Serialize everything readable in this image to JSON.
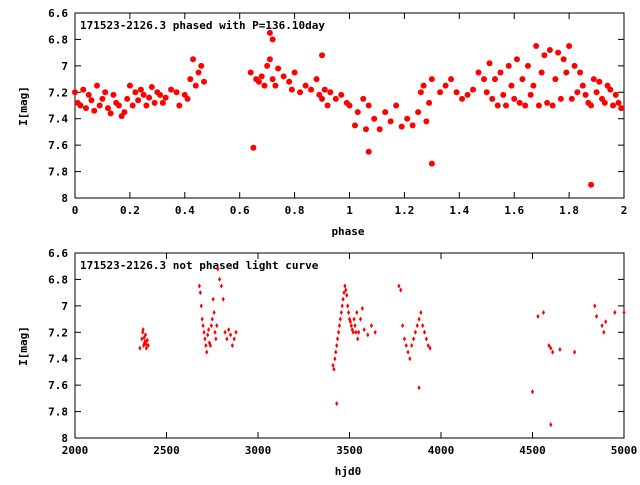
{
  "chart_data": [
    {
      "type": "scatter",
      "title": "171523-2126.3 phased with P=136.10day",
      "xlabel": "phase",
      "ylabel": "I[mag]",
      "xlim": [
        0,
        2
      ],
      "ylim": [
        8,
        6.6
      ],
      "y_inverted": true,
      "xticks": [
        "0",
        "0.2",
        "0.4",
        "0.6",
        "0.8",
        "1",
        "1.2",
        "1.4",
        "1.6",
        "1.8",
        "2"
      ],
      "yticks": [
        "6.6",
        "6.8",
        "7",
        "7.2",
        "7.4",
        "7.6",
        "7.8",
        "8"
      ],
      "marker_color": "#ff0000",
      "grid": false,
      "series": [
        {
          "x": [
            0.0,
            0.01,
            0.02,
            0.03,
            0.04,
            0.05,
            0.06,
            0.07,
            0.08,
            0.09,
            0.1,
            0.11,
            0.12,
            0.13,
            0.14,
            0.15,
            0.16,
            0.17,
            0.18,
            0.19,
            0.2,
            0.21,
            0.22,
            0.23,
            0.24,
            0.25,
            0.26,
            0.27,
            0.28,
            0.29,
            0.3,
            0.31,
            0.32,
            0.33,
            0.35,
            0.37,
            0.38,
            0.4,
            0.41,
            0.42,
            0.43,
            0.44,
            0.45,
            0.46,
            0.47,
            0.64,
            0.66,
            0.67,
            0.68,
            0.69,
            0.7,
            0.71,
            0.72,
            0.73,
            0.74,
            0.76,
            0.78,
            0.79,
            0.8,
            0.82,
            0.84,
            0.86,
            0.88,
            0.89,
            0.9,
            0.91,
            0.92,
            0.93,
            0.95,
            0.97,
            0.99,
            1.0,
            1.02,
            1.03,
            1.05,
            1.06,
            1.07,
            1.09,
            1.11,
            1.13,
            1.15,
            1.17,
            1.19,
            1.21,
            1.23,
            1.25,
            1.26,
            1.27,
            1.28,
            1.29,
            1.3,
            1.33,
            1.35,
            1.37,
            1.39,
            1.41,
            1.43,
            1.45,
            1.47,
            1.49,
            1.5,
            1.51,
            1.52,
            1.53,
            1.54,
            1.55,
            1.56,
            1.57,
            1.58,
            1.59,
            1.6,
            1.61,
            1.62,
            1.63,
            1.64,
            1.65,
            1.66,
            1.67,
            1.68,
            1.69,
            1.7,
            1.71,
            1.72,
            1.73,
            1.74,
            1.75,
            1.76,
            1.77,
            1.78,
            1.79,
            1.8,
            1.81,
            1.82,
            1.83,
            1.84,
            1.85,
            1.86,
            1.87,
            1.88,
            1.89,
            1.9,
            1.91,
            1.92,
            1.93,
            1.94,
            1.95,
            1.96,
            1.97,
            1.98,
            1.99,
            0.65,
            1.07,
            1.3,
            1.88,
            0.71,
            0.72,
            0.9
          ],
          "y": [
            7.2,
            7.28,
            7.3,
            7.18,
            7.32,
            7.22,
            7.26,
            7.34,
            7.15,
            7.3,
            7.25,
            7.2,
            7.32,
            7.36,
            7.22,
            7.28,
            7.3,
            7.38,
            7.35,
            7.25,
            7.15,
            7.3,
            7.2,
            7.26,
            7.18,
            7.22,
            7.3,
            7.24,
            7.16,
            7.28,
            7.2,
            7.22,
            7.28,
            7.24,
            7.18,
            7.2,
            7.3,
            7.22,
            7.25,
            7.1,
            6.95,
            7.15,
            7.05,
            7.0,
            7.12,
            7.05,
            7.1,
            7.12,
            7.08,
            7.15,
            7.0,
            6.95,
            7.1,
            7.15,
            7.02,
            7.08,
            7.12,
            7.18,
            7.05,
            7.2,
            7.15,
            7.18,
            7.1,
            7.22,
            7.25,
            7.18,
            7.3,
            7.2,
            7.25,
            7.22,
            7.28,
            7.3,
            7.45,
            7.35,
            7.25,
            7.48,
            7.3,
            7.4,
            7.48,
            7.35,
            7.42,
            7.3,
            7.46,
            7.4,
            7.45,
            7.35,
            7.2,
            7.15,
            7.42,
            7.28,
            7.1,
            7.2,
            7.15,
            7.1,
            7.2,
            7.25,
            7.22,
            7.18,
            7.05,
            7.1,
            7.2,
            6.98,
            7.25,
            7.1,
            7.3,
            7.05,
            7.22,
            7.3,
            7.0,
            7.15,
            7.25,
            6.95,
            7.28,
            7.1,
            7.3,
            7.0,
            7.22,
            7.15,
            6.85,
            7.3,
            7.05,
            6.92,
            7.28,
            6.88,
            7.3,
            7.1,
            6.9,
            7.25,
            6.95,
            7.05,
            6.85,
            7.25,
            7.0,
            7.2,
            7.05,
            7.15,
            7.22,
            7.28,
            7.3,
            7.1,
            7.2,
            7.12,
            7.25,
            7.28,
            7.15,
            7.18,
            7.3,
            7.22,
            7.28,
            7.32,
            7.62,
            7.65,
            7.74,
            7.9,
            6.75,
            6.8,
            6.92
          ]
        }
      ]
    },
    {
      "type": "scatter",
      "title": "171523-2126.3 not phased light curve",
      "xlabel": "hjd0",
      "ylabel": "I[mag]",
      "xlim": [
        2000,
        5000
      ],
      "ylim": [
        8,
        6.6
      ],
      "y_inverted": true,
      "xticks": [
        "2000",
        "2500",
        "3000",
        "3500",
        "4000",
        "4500",
        "5000"
      ],
      "yticks": [
        "6.6",
        "6.8",
        "7",
        "7.2",
        "7.4",
        "7.6",
        "7.8",
        "8"
      ],
      "marker_color": "#ff0000",
      "grid": false,
      "series": [
        {
          "x": [
            2355,
            2365,
            2370,
            2375,
            2380,
            2385,
            2390,
            2395,
            2400,
            2372,
            2378,
            2383,
            2388,
            2680,
            2685,
            2690,
            2695,
            2700,
            2705,
            2710,
            2715,
            2720,
            2725,
            2730,
            2735,
            2740,
            2745,
            2750,
            2755,
            2760,
            2765,
            2770,
            2775,
            2780,
            2790,
            2800,
            2810,
            2820,
            2830,
            2840,
            2850,
            2860,
            2870,
            2880,
            3410,
            3415,
            3420,
            3425,
            3430,
            3435,
            3440,
            3445,
            3450,
            3455,
            3460,
            3465,
            3470,
            3475,
            3480,
            3485,
            3490,
            3495,
            3500,
            3505,
            3510,
            3515,
            3520,
            3525,
            3530,
            3535,
            3540,
            3545,
            3550,
            3560,
            3570,
            3580,
            3600,
            3620,
            3640,
            3770,
            3780,
            3790,
            3800,
            3810,
            3820,
            3830,
            3840,
            3850,
            3860,
            3870,
            3880,
            3890,
            3900,
            3910,
            3920,
            3930,
            3940,
            4500,
            4530,
            4560,
            4590,
            4600,
            4610,
            4650,
            4730,
            4840,
            4850,
            4880,
            4890,
            4900,
            4950,
            5000,
            3430,
            3880,
            4600
          ],
          "y": [
            7.32,
            7.25,
            7.2,
            7.3,
            7.28,
            7.22,
            7.32,
            7.26,
            7.3,
            7.18,
            7.24,
            7.27,
            7.29,
            6.85,
            6.9,
            7.0,
            7.1,
            7.15,
            7.2,
            7.25,
            7.3,
            7.35,
            7.22,
            7.18,
            7.28,
            7.3,
            7.15,
            7.1,
            6.95,
            7.05,
            7.2,
            7.25,
            7.15,
            6.72,
            6.8,
            6.85,
            6.95,
            7.2,
            7.25,
            7.18,
            7.22,
            7.3,
            7.25,
            7.2,
            7.45,
            7.48,
            7.4,
            7.35,
            7.3,
            7.25,
            7.2,
            7.15,
            7.1,
            7.05,
            7.0,
            6.95,
            6.9,
            6.85,
            6.88,
            6.92,
            7.0,
            7.05,
            7.1,
            7.12,
            7.15,
            7.18,
            7.2,
            7.1,
            7.15,
            7.2,
            7.05,
            7.25,
            7.2,
            7.1,
            7.02,
            7.18,
            7.22,
            7.15,
            7.2,
            6.85,
            6.88,
            7.15,
            7.25,
            7.3,
            7.35,
            7.4,
            7.3,
            7.25,
            7.2,
            7.15,
            7.1,
            7.05,
            7.15,
            7.2,
            7.25,
            7.3,
            7.32,
            7.65,
            7.08,
            7.05,
            7.3,
            7.32,
            7.35,
            7.33,
            7.35,
            7.0,
            7.08,
            7.15,
            7.2,
            7.12,
            7.05,
            7.05,
            7.74,
            7.62,
            7.9
          ]
        }
      ]
    }
  ]
}
